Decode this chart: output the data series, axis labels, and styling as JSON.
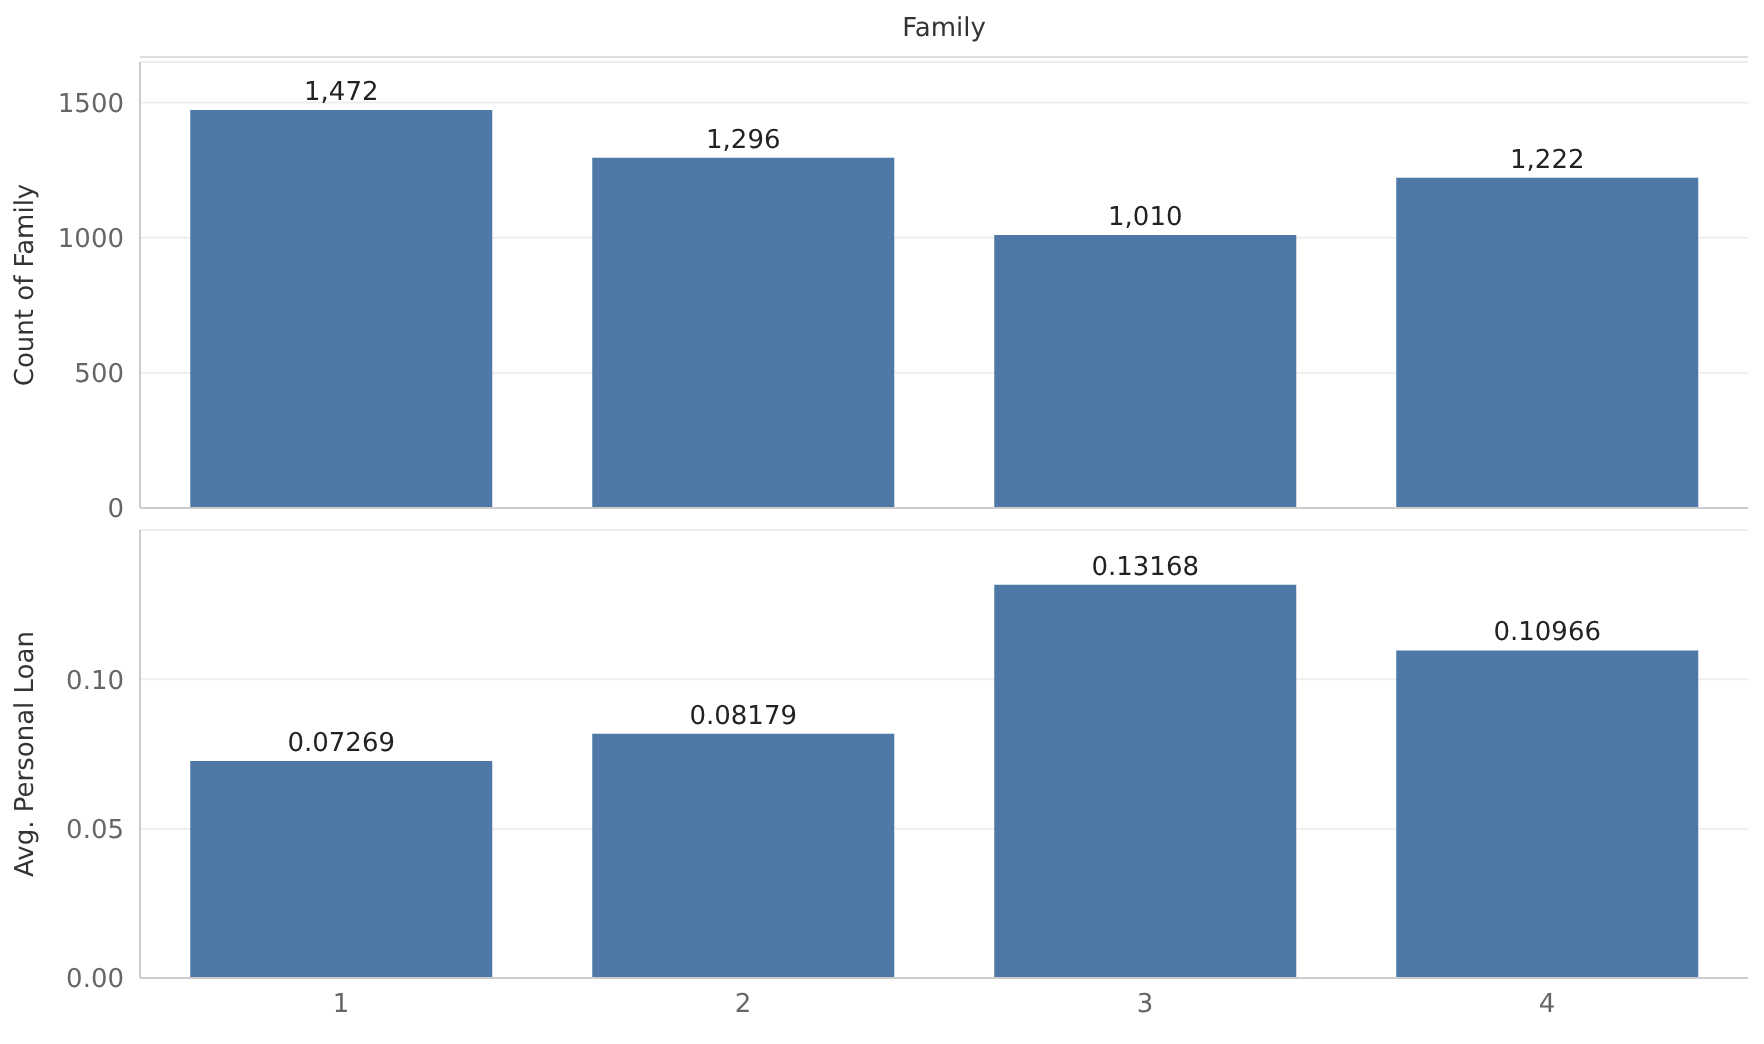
{
  "chart_data": [
    {
      "type": "bar",
      "title": "Family",
      "ylabel": "Count of Family",
      "categories": [
        "1",
        "2",
        "3",
        "4"
      ],
      "values": [
        1472,
        1296,
        1010,
        1222
      ],
      "color": "#4e79a7",
      "ylim": [
        0,
        1650
      ],
      "yticks": [
        0,
        500,
        1000,
        1500
      ],
      "grid": "y",
      "value_labels": [
        "1,472",
        "1,296",
        "1,010",
        "1,222"
      ],
      "tick_labels": "y"
    },
    {
      "type": "bar",
      "ylabel": "Avg. Personal Loan",
      "categories": [
        "1",
        "2",
        "3",
        "4"
      ],
      "values": [
        0.07269,
        0.08179,
        0.13168,
        0.10966
      ],
      "color": "#4e79a7",
      "ylim": [
        0,
        0.15
      ],
      "yticks": [
        {
          "value": 0,
          "label": "0.00"
        },
        {
          "value": 0.05,
          "label": "0.05"
        },
        {
          "value": 0.1,
          "label": "0.10"
        }
      ],
      "grid": "y",
      "data_labels": true
    }
  ]
}
